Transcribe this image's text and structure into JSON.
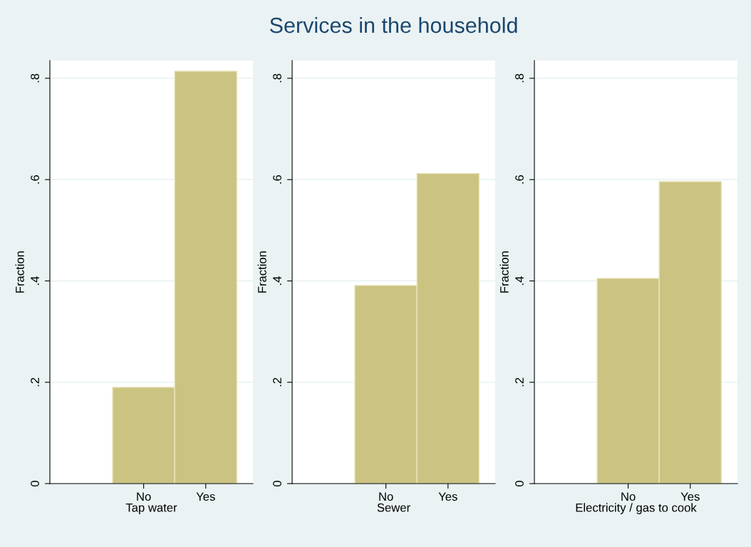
{
  "chart_data": [
    {
      "type": "bar",
      "categories": [
        "No",
        "Yes"
      ],
      "values": [
        0.19,
        0.814
      ],
      "color": "#cbc382",
      "xlabel": "Tap water",
      "ylabel": "Fraction",
      "ylim": [
        0,
        0.835
      ],
      "yticks": [
        0,
        {
          "value": 0.2,
          "label": ".2"
        },
        {
          "value": 0.4,
          "label": ".4"
        },
        {
          "value": 0.6,
          "label": ".6"
        },
        {
          "value": 0.8,
          "label": ".8"
        }
      ],
      "grid": "y"
    },
    {
      "type": "bar",
      "title": "Services in the household",
      "categories": [
        "No",
        "Yes"
      ],
      "values": [
        0.391,
        0.612
      ],
      "color": "#cbc382",
      "xlabel": "Sewer",
      "ylabel": "Fraction",
      "ylim": [
        0,
        0.835
      ],
      "yticks": [
        0,
        {
          "value": 0.2,
          "label": ".2"
        },
        {
          "value": 0.4,
          "label": ".4"
        },
        {
          "value": 0.6,
          "label": ".6"
        },
        {
          "value": 0.8,
          "label": ".8"
        }
      ],
      "grid": "y"
    },
    {
      "type": "bar",
      "categories": [
        "No",
        "Yes"
      ],
      "values": [
        0.405,
        0.596
      ],
      "color": "#cbc382",
      "xlabel": "Electricity / gas to cook",
      "ylabel": "Fraction",
      "ylim": [
        0,
        0.835
      ],
      "yticks": [
        0,
        {
          "value": 0.2,
          "label": ".2"
        },
        {
          "value": 0.4,
          "label": ".4"
        },
        {
          "value": 0.6,
          "label": ".6"
        },
        {
          "value": 0.8,
          "label": ".8"
        }
      ],
      "grid": "y"
    }
  ]
}
